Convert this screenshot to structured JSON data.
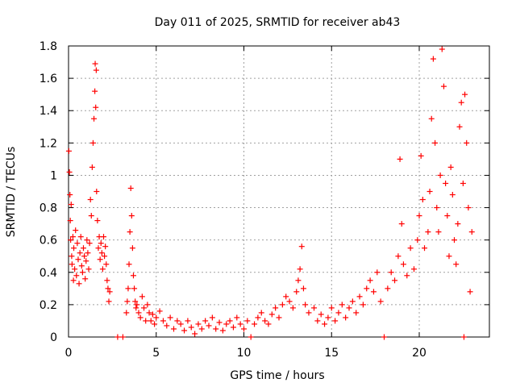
{
  "chart_data": {
    "type": "scatter",
    "title": "Day 011 of 2025, SRMTID for receiver ab43",
    "xlabel": "GPS time / hours",
    "ylabel": "SRMTID / TECUs",
    "xlim": [
      0,
      24
    ],
    "ylim": [
      0,
      1.8
    ],
    "xticks": [
      0,
      5,
      10,
      15,
      20
    ],
    "xtick_labels": [
      "0",
      "5",
      "10",
      "15",
      "20"
    ],
    "yticks": [
      0,
      0.2,
      0.4,
      0.6,
      0.8,
      1.0,
      1.2,
      1.4,
      1.6,
      1.8
    ],
    "ytick_labels": [
      "0",
      "0.2",
      "0.4",
      "0.6",
      "0.8",
      "1",
      "1.2",
      "1.4",
      "1.6",
      "1.8"
    ],
    "grid": true,
    "marker": "+",
    "series": [
      {
        "name": "SRMTID",
        "color": "#ff0000",
        "points": [
          [
            0.02,
            1.15
          ],
          [
            0.05,
            1.02
          ],
          [
            0.08,
            0.88
          ],
          [
            0.1,
            0.72
          ],
          [
            0.12,
            0.6
          ],
          [
            0.15,
            0.82
          ],
          [
            0.18,
            0.5
          ],
          [
            0.2,
            0.45
          ],
          [
            0.25,
            0.62
          ],
          [
            0.28,
            0.35
          ],
          [
            0.3,
            0.55
          ],
          [
            0.35,
            0.42
          ],
          [
            0.4,
            0.66
          ],
          [
            0.45,
            0.38
          ],
          [
            0.5,
            0.58
          ],
          [
            0.55,
            0.48
          ],
          [
            0.6,
            0.33
          ],
          [
            0.65,
            0.52
          ],
          [
            0.7,
            0.62
          ],
          [
            0.75,
            0.44
          ],
          [
            0.8,
            0.4
          ],
          [
            0.85,
            0.55
          ],
          [
            0.9,
            0.5
          ],
          [
            0.95,
            0.36
          ],
          [
            1.0,
            0.47
          ],
          [
            1.05,
            0.6
          ],
          [
            1.1,
            0.52
          ],
          [
            1.15,
            0.42
          ],
          [
            1.2,
            0.58
          ],
          [
            1.25,
            0.85
          ],
          [
            1.3,
            0.75
          ],
          [
            1.35,
            1.05
          ],
          [
            1.4,
            1.2
          ],
          [
            1.45,
            1.35
          ],
          [
            1.5,
            1.52
          ],
          [
            1.52,
            1.69
          ],
          [
            1.55,
            1.42
          ],
          [
            1.58,
            1.65
          ],
          [
            1.6,
            0.9
          ],
          [
            1.65,
            0.72
          ],
          [
            1.7,
            0.55
          ],
          [
            1.75,
            0.62
          ],
          [
            1.8,
            0.48
          ],
          [
            1.85,
            0.58
          ],
          [
            1.9,
            0.52
          ],
          [
            1.95,
            0.42
          ],
          [
            2.0,
            0.62
          ],
          [
            2.05,
            0.5
          ],
          [
            2.1,
            0.56
          ],
          [
            2.15,
            0.45
          ],
          [
            2.2,
            0.35
          ],
          [
            2.25,
            0.3
          ],
          [
            2.3,
            0.22
          ],
          [
            2.35,
            0.28
          ],
          [
            2.8,
            0.0
          ],
          [
            3.1,
            0.0
          ],
          [
            3.3,
            0.15
          ],
          [
            3.35,
            0.22
          ],
          [
            3.4,
            0.3
          ],
          [
            3.45,
            0.45
          ],
          [
            3.5,
            0.65
          ],
          [
            3.55,
            0.92
          ],
          [
            3.6,
            0.75
          ],
          [
            3.65,
            0.55
          ],
          [
            3.7,
            0.38
          ],
          [
            3.75,
            0.3
          ],
          [
            3.8,
            0.22
          ],
          [
            3.85,
            0.18
          ],
          [
            3.9,
            0.2
          ],
          [
            4.0,
            0.15
          ],
          [
            4.1,
            0.12
          ],
          [
            4.2,
            0.25
          ],
          [
            4.3,
            0.18
          ],
          [
            4.4,
            0.1
          ],
          [
            4.5,
            0.2
          ],
          [
            4.6,
            0.15
          ],
          [
            4.7,
            0.1
          ],
          [
            4.8,
            0.14
          ],
          [
            4.9,
            0.08
          ],
          [
            5.0,
            0.12
          ],
          [
            5.2,
            0.16
          ],
          [
            5.4,
            0.1
          ],
          [
            5.6,
            0.07
          ],
          [
            5.8,
            0.12
          ],
          [
            6.0,
            0.05
          ],
          [
            6.2,
            0.1
          ],
          [
            6.4,
            0.08
          ],
          [
            6.6,
            0.04
          ],
          [
            6.8,
            0.1
          ],
          [
            7.0,
            0.06
          ],
          [
            7.2,
            0.02
          ],
          [
            7.4,
            0.08
          ],
          [
            7.6,
            0.05
          ],
          [
            7.8,
            0.1
          ],
          [
            8.0,
            0.07
          ],
          [
            8.2,
            0.12
          ],
          [
            8.4,
            0.05
          ],
          [
            8.6,
            0.09
          ],
          [
            8.8,
            0.04
          ],
          [
            9.0,
            0.08
          ],
          [
            9.2,
            0.1
          ],
          [
            9.4,
            0.06
          ],
          [
            9.6,
            0.12
          ],
          [
            9.8,
            0.08
          ],
          [
            10.0,
            0.05
          ],
          [
            10.2,
            0.1
          ],
          [
            10.4,
            0.0
          ],
          [
            10.6,
            0.08
          ],
          [
            10.8,
            0.12
          ],
          [
            11.0,
            0.15
          ],
          [
            11.2,
            0.1
          ],
          [
            11.4,
            0.08
          ],
          [
            11.6,
            0.14
          ],
          [
            11.8,
            0.18
          ],
          [
            12.0,
            0.12
          ],
          [
            12.2,
            0.2
          ],
          [
            12.4,
            0.25
          ],
          [
            12.6,
            0.22
          ],
          [
            12.8,
            0.18
          ],
          [
            13.0,
            0.28
          ],
          [
            13.1,
            0.35
          ],
          [
            13.2,
            0.42
          ],
          [
            13.3,
            0.56
          ],
          [
            13.4,
            0.3
          ],
          [
            13.5,
            0.2
          ],
          [
            13.7,
            0.15
          ],
          [
            14.0,
            0.18
          ],
          [
            14.2,
            0.1
          ],
          [
            14.4,
            0.14
          ],
          [
            14.6,
            0.08
          ],
          [
            14.8,
            0.12
          ],
          [
            15.0,
            0.18
          ],
          [
            15.2,
            0.1
          ],
          [
            15.4,
            0.15
          ],
          [
            15.6,
            0.2
          ],
          [
            15.8,
            0.12
          ],
          [
            16.0,
            0.18
          ],
          [
            16.2,
            0.22
          ],
          [
            16.4,
            0.15
          ],
          [
            16.6,
            0.25
          ],
          [
            16.8,
            0.2
          ],
          [
            17.0,
            0.3
          ],
          [
            17.2,
            0.35
          ],
          [
            17.4,
            0.28
          ],
          [
            17.6,
            0.4
          ],
          [
            17.8,
            0.22
          ],
          [
            18.0,
            0.0
          ],
          [
            18.2,
            0.3
          ],
          [
            18.4,
            0.4
          ],
          [
            18.6,
            0.35
          ],
          [
            18.8,
            0.5
          ],
          [
            18.9,
            1.1
          ],
          [
            19.0,
            0.7
          ],
          [
            19.1,
            0.45
          ],
          [
            19.3,
            0.38
          ],
          [
            19.5,
            0.55
          ],
          [
            19.7,
            0.42
          ],
          [
            19.9,
            0.6
          ],
          [
            20.0,
            0.75
          ],
          [
            20.1,
            1.12
          ],
          [
            20.2,
            0.85
          ],
          [
            20.3,
            0.55
          ],
          [
            20.5,
            0.65
          ],
          [
            20.6,
            0.9
          ],
          [
            20.7,
            1.35
          ],
          [
            20.8,
            1.72
          ],
          [
            20.9,
            1.2
          ],
          [
            21.0,
            0.8
          ],
          [
            21.1,
            0.65
          ],
          [
            21.2,
            1.0
          ],
          [
            21.3,
            1.78
          ],
          [
            21.4,
            1.55
          ],
          [
            21.5,
            0.95
          ],
          [
            21.6,
            0.75
          ],
          [
            21.7,
            0.5
          ],
          [
            21.8,
            1.05
          ],
          [
            21.9,
            0.88
          ],
          [
            22.0,
            0.6
          ],
          [
            22.1,
            0.45
          ],
          [
            22.2,
            0.7
          ],
          [
            22.3,
            1.3
          ],
          [
            22.4,
            1.45
          ],
          [
            22.5,
            0.95
          ],
          [
            22.55,
            0.0
          ],
          [
            22.6,
            1.5
          ],
          [
            22.7,
            1.2
          ],
          [
            22.8,
            0.8
          ],
          [
            22.9,
            0.28
          ],
          [
            23.0,
            0.65
          ]
        ]
      }
    ]
  }
}
